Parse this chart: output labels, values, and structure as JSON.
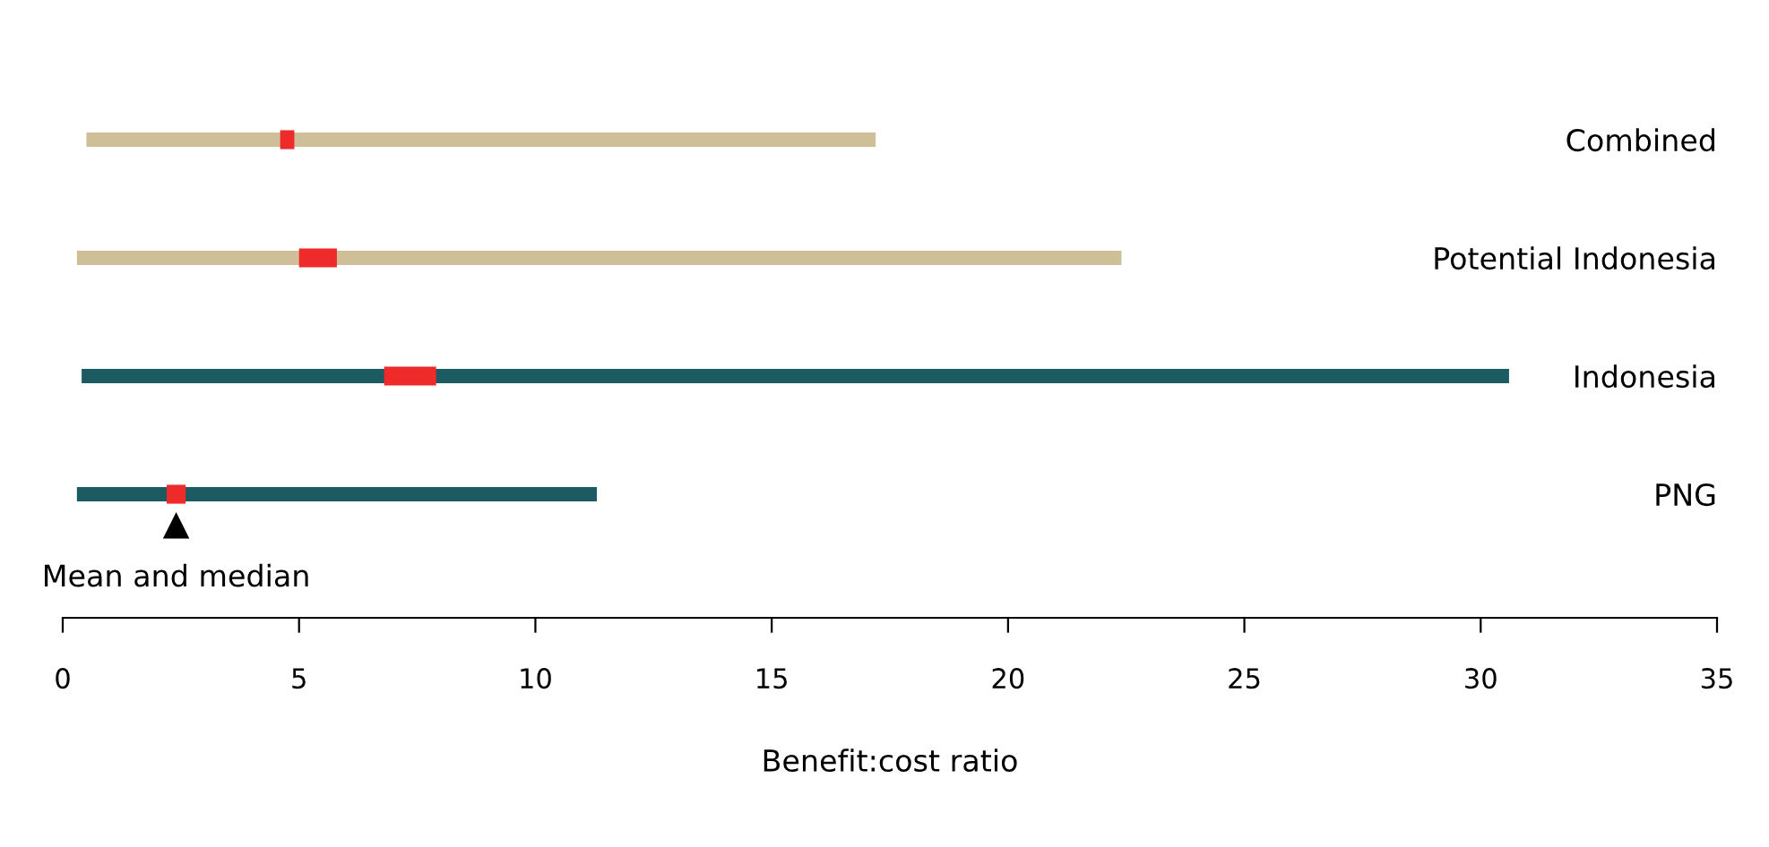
{
  "chart_data": {
    "type": "bar",
    "orientation": "horizontal",
    "xlabel": "Benefit:cost ratio",
    "categories": [
      "Combined",
      "Potential Indonesia",
      "Indonesia",
      "PNG"
    ],
    "series": [
      {
        "colors": [
          "#cfbf98",
          "#cfbf98",
          "#1b5b61",
          "#1b5b61"
        ],
        "base": [
          0.5,
          0.3,
          0.4,
          0.3
        ],
        "values": [
          16.7,
          22.1,
          30.2,
          11.0
        ]
      },
      {
        "name": "Mean and median",
        "color": "#ee2a2a",
        "base": [
          4.6,
          5.0,
          6.8,
          2.2
        ],
        "values": [
          0.3,
          0.8,
          1.1,
          0.4
        ]
      }
    ],
    "xlim": [
      0,
      35
    ],
    "xticks": [
      0,
      5,
      10,
      15,
      20,
      25,
      30,
      35
    ],
    "grid": false,
    "legend": false
  }
}
